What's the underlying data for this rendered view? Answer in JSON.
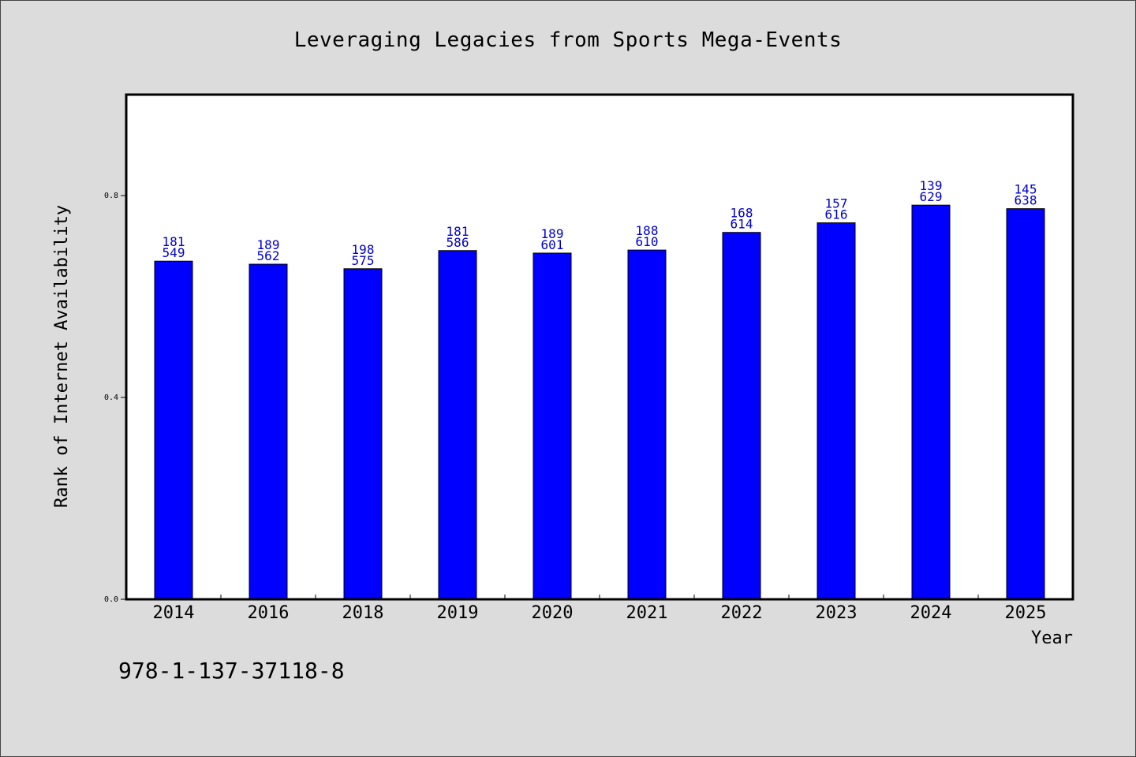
{
  "page": {
    "title": "Leveraging Legacies from Sports Mega-Events",
    "isbn": "978-1-137-37118-8"
  },
  "colors": {
    "bar": "#0000ff",
    "bar_label": "#0000cc",
    "plot_bg": "#ffffff",
    "page_bg": "#dcdcdc"
  },
  "chart_data": {
    "type": "bar",
    "title": "Leveraging Legacies from Sports Mega-Events",
    "xlabel": "Year",
    "ylabel": "Rank of Internet Availability",
    "ylim": [
      0,
      1.0
    ],
    "yticks": [
      "0.0",
      "0.4",
      "0.8"
    ],
    "categories": [
      "2014",
      "2016",
      "2018",
      "2019",
      "2020",
      "2021",
      "2022",
      "2023",
      "2024",
      "2025"
    ],
    "values": [
      0.67,
      0.664,
      0.655,
      0.691,
      0.686,
      0.692,
      0.727,
      0.746,
      0.781,
      0.774
    ],
    "labels": [
      [
        "181",
        "549"
      ],
      [
        "189",
        "562"
      ],
      [
        "198",
        "575"
      ],
      [
        "181",
        "586"
      ],
      [
        "189",
        "601"
      ],
      [
        "188",
        "610"
      ],
      [
        "168",
        "614"
      ],
      [
        "157",
        "616"
      ],
      [
        "139",
        "629"
      ],
      [
        "145",
        "638"
      ]
    ],
    "grid": false,
    "legend": "none"
  }
}
